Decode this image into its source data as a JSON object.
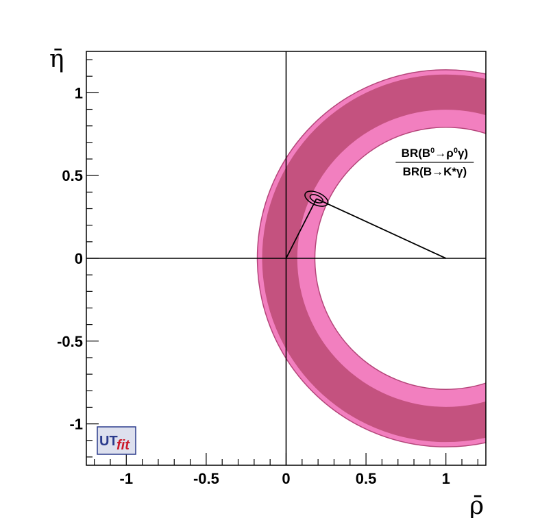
{
  "chart_data": {
    "type": "contour",
    "xlabel": "ρ̄",
    "ylabel": "η̄",
    "xlim": [
      -1.25,
      1.25
    ],
    "ylim": [
      -1.25,
      1.25
    ],
    "x_ticks": [
      {
        "value": -1,
        "label": "-1"
      },
      {
        "value": -0.5,
        "label": "-0.5"
      },
      {
        "value": 0,
        "label": "0"
      },
      {
        "value": 0.5,
        "label": "0.5"
      },
      {
        "value": 1,
        "label": "1"
      }
    ],
    "y_ticks": [
      {
        "value": -1,
        "label": "-1"
      },
      {
        "value": -0.5,
        "label": "-0.5"
      },
      {
        "value": 0,
        "label": "0"
      },
      {
        "value": 0.5,
        "label": "0.5"
      },
      {
        "value": 1,
        "label": "1"
      }
    ],
    "annulus": {
      "center": [
        1.0,
        0.0
      ],
      "outer_radius_95": 1.18,
      "outer_radius_68": 1.15,
      "inner_radius_68": 0.93,
      "inner_radius_95": 0.82,
      "color_68": "#c4527f",
      "color_95": "#f27fbf",
      "edge_color": "#b5457a"
    },
    "apex": {
      "rho": 0.19,
      "eta": 0.36
    },
    "triangle": [
      [
        0,
        0
      ],
      [
        1,
        0
      ],
      [
        0.19,
        0.36
      ]
    ],
    "annotation": {
      "numerator": {
        "prefix": "BR(B",
        "sup1": "0",
        "arrow": "→ρ",
        "sup2": "0",
        "suffix": "γ)"
      },
      "denominator": "BR(B→K*γ)",
      "position": [
        0.93,
        0.58
      ]
    },
    "logo": {
      "text1": "UT",
      "text2": "fit",
      "color1": "#2a3a8c",
      "color2": "#cc1a2a"
    }
  }
}
